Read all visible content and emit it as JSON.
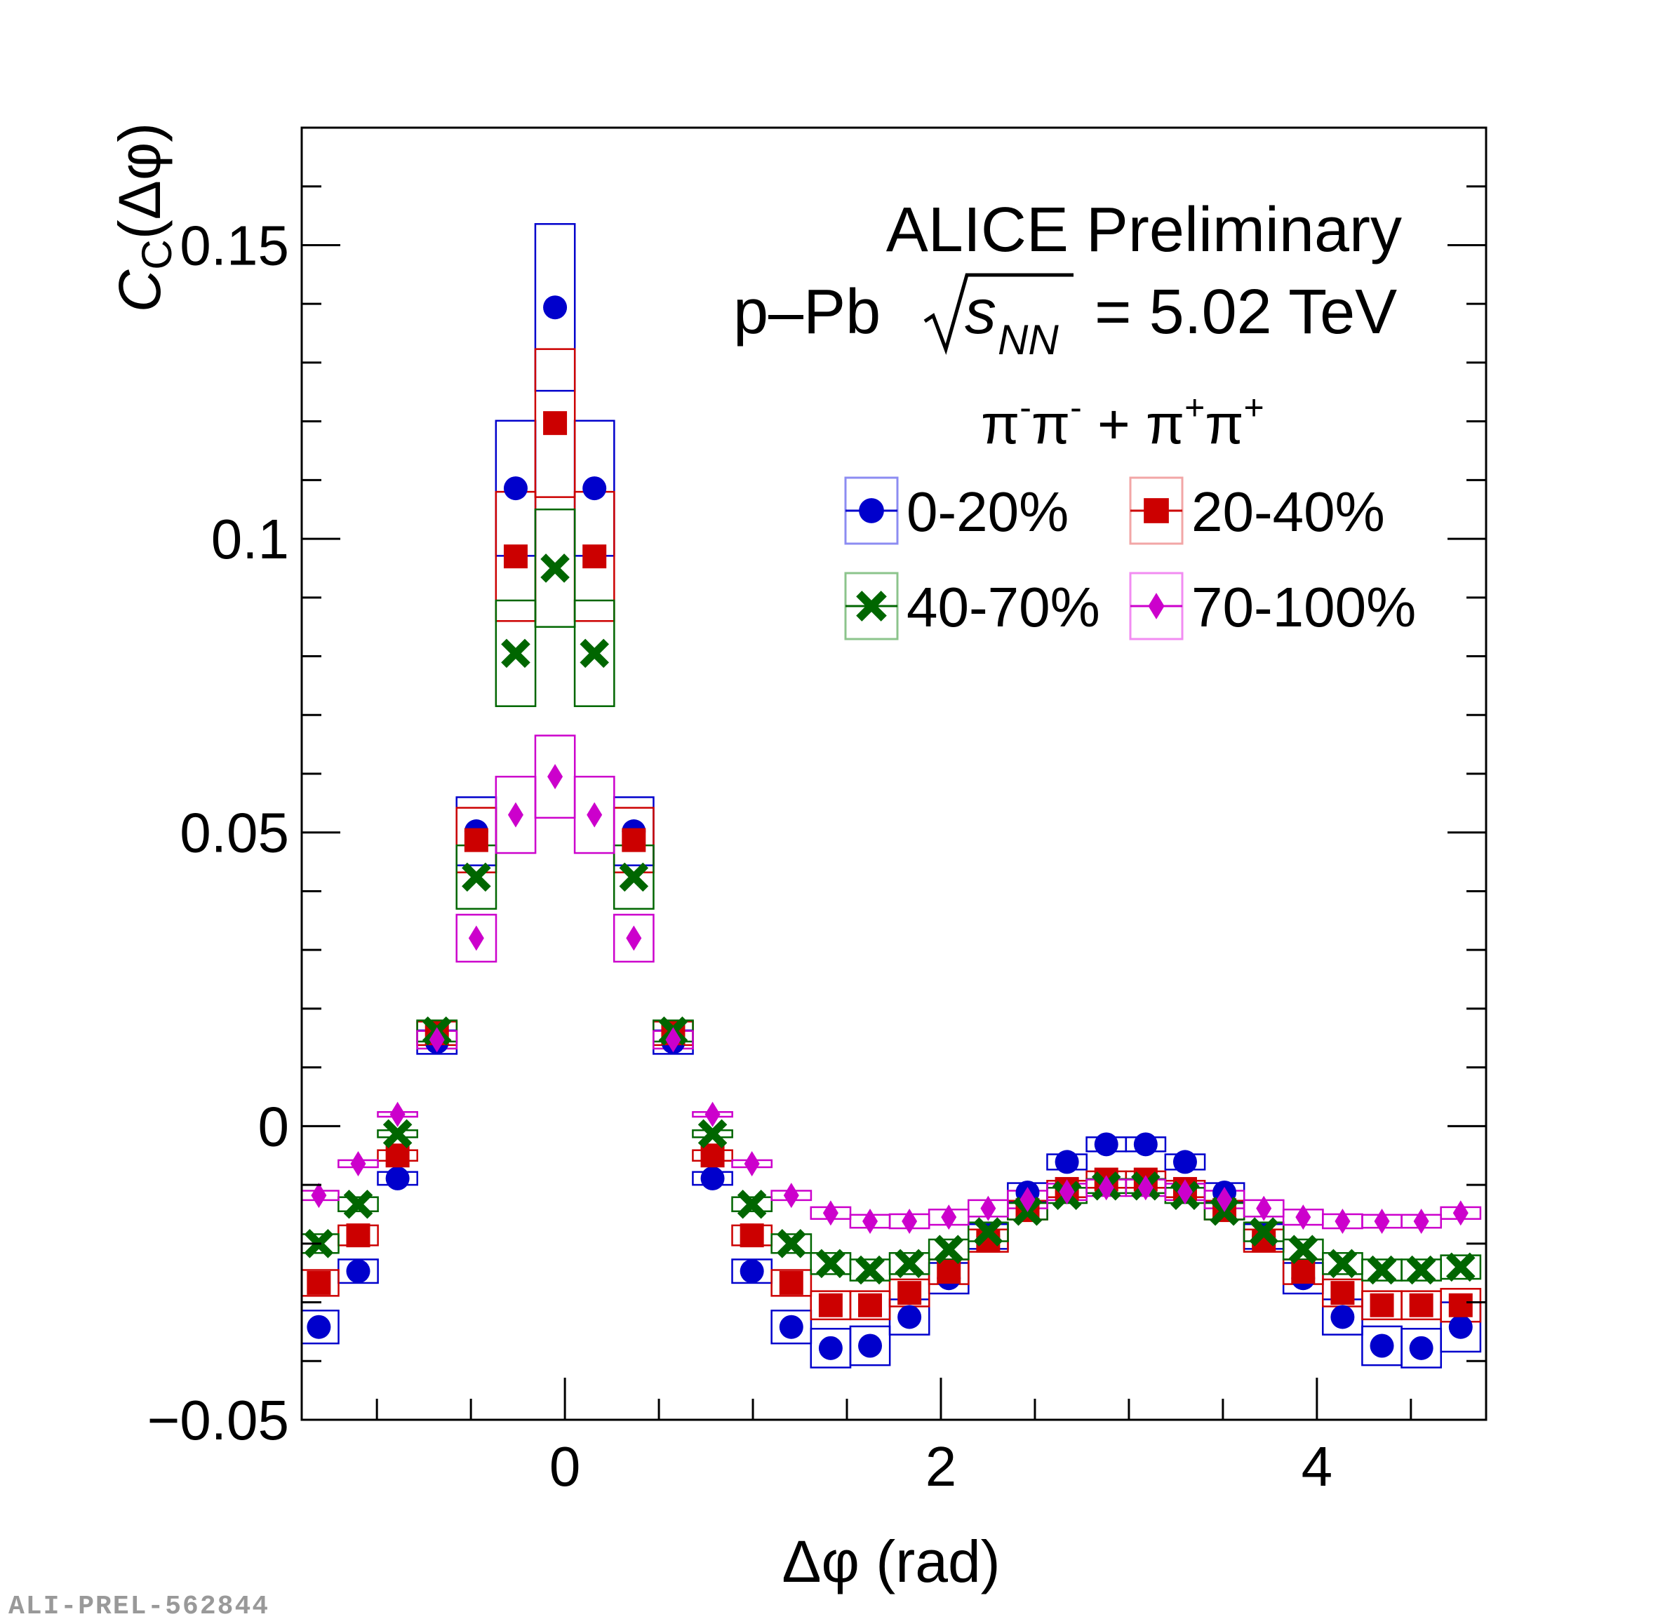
{
  "colors": {
    "0-20%": "#0000cc",
    "20-40%": "#cc0000",
    "40-70%": "#006600",
    "70-100%": "#cc00cc",
    "legend_box_0-20%": "#8c8cf2",
    "legend_box_20-40%": "#f2a6a6",
    "legend_box_40-70%": "#8cc48c",
    "legend_box_70-100%": "#f28cf2"
  },
  "labels": {
    "experiment": "ALICE Preliminary",
    "system_prefix": "p–Pb",
    "energy_var": "s",
    "energy_sub": "NN",
    "energy_value": "= 5.02 TeV",
    "pi": "π",
    "minus": "-",
    "plus_sign": "+",
    "join": " + ",
    "y_C": "C",
    "y_sub": "C",
    "y_rest": "(Δφ)",
    "x_label": "Δφ (rad)",
    "watermark": "ALI-PREL-562844"
  },
  "chart_data": {
    "type": "scatter",
    "title": "ALICE Preliminary",
    "subtitle": "p–Pb √s_NN = 5.02 TeV, π⁻π⁻ + π⁺π⁺",
    "xlabel": "Δφ (rad)",
    "ylabel": "C_C(Δφ)",
    "xlim": [
      -1.4,
      4.9
    ],
    "ylim": [
      -0.05,
      0.17
    ],
    "xticks": [
      0,
      2,
      4
    ],
    "xtick_labels": [
      "0",
      "2",
      "4"
    ],
    "yticks": [
      -0.05,
      0,
      0.05,
      0.1,
      0.15
    ],
    "ytick_labels": [
      "−0.05",
      "0",
      "0.05",
      "0.1",
      "0.15"
    ],
    "bin_width": 0.21,
    "legend_position": "top-right",
    "x": [
      -1.309,
      -1.0996,
      -0.8901,
      -0.6807,
      -0.4712,
      -0.2618,
      -0.0524,
      0.1571,
      0.3665,
      0.576,
      0.7854,
      0.9948,
      1.2043,
      1.4137,
      1.6232,
      1.8326,
      2.042,
      2.2515,
      2.4609,
      2.6704,
      2.8798,
      3.0892,
      3.2987,
      3.5081,
      3.7176,
      3.927,
      4.1364,
      4.3459,
      4.5553,
      4.7648
    ],
    "series": [
      {
        "name": "0-20%",
        "marker": "circle",
        "values": [
          -0.0342,
          -0.0247,
          -0.0089,
          0.0143,
          0.0502,
          0.1086,
          0.1394,
          0.1086,
          0.0502,
          0.0143,
          -0.0089,
          -0.0247,
          -0.0342,
          -0.0378,
          -0.0374,
          -0.0325,
          -0.0259,
          -0.0188,
          -0.0113,
          -0.0061,
          -0.0031,
          -0.0031,
          -0.0061,
          -0.0113,
          -0.0188,
          -0.0259,
          -0.0325,
          -0.0374,
          -0.0378,
          -0.0342
        ],
        "sys": [
          0.0028,
          0.002,
          0.0011,
          0.002,
          0.0058,
          0.0115,
          0.0142,
          0.0115,
          0.0058,
          0.002,
          0.0011,
          0.002,
          0.0028,
          0.0033,
          0.0033,
          0.003,
          0.0026,
          0.0021,
          0.0016,
          0.0013,
          0.0012,
          0.0012,
          0.0013,
          0.0016,
          0.0021,
          0.0026,
          0.003,
          0.0033,
          0.0033,
          0.0042
        ]
      },
      {
        "name": "20-40%",
        "marker": "square",
        "values": [
          -0.0267,
          -0.0186,
          -0.005,
          0.0158,
          0.0487,
          0.097,
          0.1197,
          0.097,
          0.0487,
          0.0158,
          -0.005,
          -0.0186,
          -0.0267,
          -0.0305,
          -0.0305,
          -0.0284,
          -0.0248,
          -0.0195,
          -0.0143,
          -0.0107,
          -0.0091,
          -0.0091,
          -0.0107,
          -0.0143,
          -0.0195,
          -0.0248,
          -0.0284,
          -0.0305,
          -0.0305,
          -0.0305
        ],
        "sys": [
          0.0022,
          0.0017,
          0.0009,
          0.002,
          0.0055,
          0.011,
          0.0126,
          0.011,
          0.0055,
          0.002,
          0.0009,
          0.0017,
          0.0022,
          0.0024,
          0.0024,
          0.0023,
          0.0021,
          0.0019,
          0.0016,
          0.0014,
          0.0014,
          0.0014,
          0.0014,
          0.0016,
          0.0019,
          0.0021,
          0.0023,
          0.0024,
          0.0024,
          0.0028
        ]
      },
      {
        "name": "40-70%",
        "marker": "cross",
        "values": [
          -0.02,
          -0.0133,
          -0.0013,
          0.0162,
          0.0424,
          0.0805,
          0.095,
          0.0805,
          0.0424,
          0.0162,
          -0.0013,
          -0.0133,
          -0.02,
          -0.0234,
          -0.0245,
          -0.0234,
          -0.021,
          -0.018,
          -0.0145,
          -0.0118,
          -0.0102,
          -0.0102,
          -0.0118,
          -0.0145,
          -0.018,
          -0.021,
          -0.0234,
          -0.0245,
          -0.0245,
          -0.024
        ],
        "sys": [
          0.0016,
          0.0012,
          0.0006,
          0.0018,
          0.0054,
          0.009,
          0.01,
          0.009,
          0.0054,
          0.0018,
          0.0006,
          0.0012,
          0.0016,
          0.0018,
          0.0018,
          0.0018,
          0.0017,
          0.0016,
          0.0014,
          0.0013,
          0.0012,
          0.0012,
          0.0013,
          0.0014,
          0.0016,
          0.0017,
          0.0018,
          0.0018,
          0.0018,
          0.002
        ]
      },
      {
        "name": "70-100%",
        "marker": "diamond",
        "values": [
          -0.0118,
          -0.0064,
          0.002,
          0.0147,
          0.032,
          0.053,
          0.0595,
          0.053,
          0.032,
          0.0147,
          0.002,
          -0.0064,
          -0.0118,
          -0.0148,
          -0.0162,
          -0.0162,
          -0.0155,
          -0.014,
          -0.0125,
          -0.0112,
          -0.0105,
          -0.0105,
          -0.0112,
          -0.0125,
          -0.014,
          -0.0155,
          -0.0162,
          -0.0162,
          -0.0162,
          -0.0148
        ],
        "sys": [
          0.0008,
          0.0006,
          0.0004,
          0.0015,
          0.004,
          0.0065,
          0.007,
          0.0065,
          0.004,
          0.0015,
          0.0004,
          0.0006,
          0.0008,
          0.001,
          0.0011,
          0.0012,
          0.0013,
          0.0014,
          0.0015,
          0.0014,
          0.0014,
          0.0014,
          0.0014,
          0.0015,
          0.0014,
          0.0013,
          0.0012,
          0.0011,
          0.0011,
          0.001
        ]
      }
    ]
  }
}
